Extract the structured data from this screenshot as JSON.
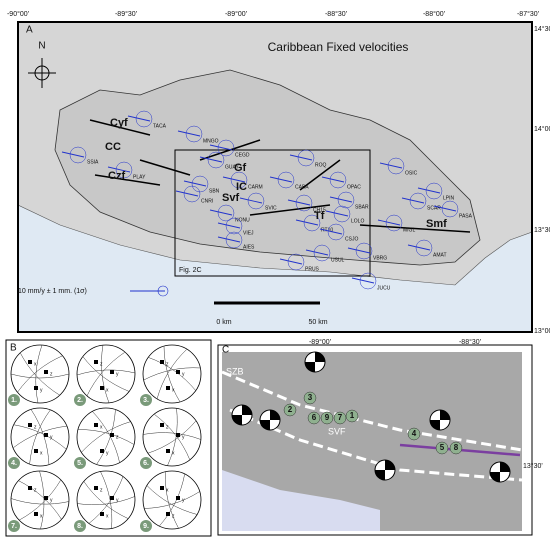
{
  "panel_a": {
    "label": "A",
    "title": "Caribbean Fixed velocities",
    "north": "N",
    "lon_labels": [
      "-90°00'",
      "-89°30'",
      "-89°00'",
      "-88°30'",
      "-88°00'",
      "-87°30'"
    ],
    "lat_labels": [
      "14°30'",
      "14°00'",
      "13°30'",
      "13°00'"
    ],
    "stations": [
      "TACA",
      "MNGO",
      "CEGD",
      "SSIA",
      "PLAY",
      "GUAY",
      "CNRI",
      "SBN",
      "CARM",
      "CABA",
      "NONU",
      "SVIC",
      "CH15",
      "OPAC",
      "SBAR",
      "LOLO",
      "RT10",
      "VIEJ",
      "AIES",
      "CSJO",
      "USUL",
      "PRUS",
      "VBRG",
      "JUCU",
      "OSIC",
      "LPIN",
      "SCAR",
      "PASA",
      "MIGL",
      "AMAT",
      "ROQ"
    ],
    "faults": [
      {
        "name": "Cyf",
        "kind": "fault"
      },
      {
        "name": "CC",
        "kind": "caldera"
      },
      {
        "name": "Czf",
        "kind": "fault"
      },
      {
        "name": "Gf",
        "kind": "fault"
      },
      {
        "name": "IC",
        "kind": "caldera"
      },
      {
        "name": "Svf",
        "kind": "fault"
      },
      {
        "name": "Tf",
        "kind": "fault"
      },
      {
        "name": "Smf",
        "kind": "fault"
      }
    ],
    "inset": "Fig. 2C",
    "legend": "10 mm/y ± 1 mm. (1σ)",
    "scale": [
      "0 km",
      "50 km"
    ]
  },
  "panel_b": {
    "label": "B",
    "nets": [
      {
        "number": "1.",
        "axes": [
          "x",
          "z",
          "y"
        ]
      },
      {
        "number": "2.",
        "axes": [
          "z",
          "y",
          "x"
        ]
      },
      {
        "number": "3.",
        "axes": [
          "z",
          "y",
          "x"
        ]
      },
      {
        "number": "4.",
        "axes": [
          "z",
          "y",
          "x"
        ]
      },
      {
        "number": "5.",
        "axes": [
          "x",
          "z",
          "y"
        ]
      },
      {
        "number": "6.",
        "axes": [
          "z",
          "y",
          "x"
        ]
      },
      {
        "number": "7.",
        "axes": [
          "z",
          "y",
          "x"
        ]
      },
      {
        "number": "8.",
        "axes": [
          "z",
          "y",
          "x"
        ]
      },
      {
        "number": "9.",
        "axes": [
          "x",
          "y",
          "z"
        ]
      }
    ]
  },
  "panel_c": {
    "label": "C",
    "lon_labels": [
      "-89°00'",
      "-88°30'"
    ],
    "lat_labels": [
      "13°30'"
    ],
    "zones": [
      "SZB",
      "SVF"
    ],
    "markers": [
      "3",
      "2",
      "6",
      "9",
      "7",
      "1",
      "4",
      "5",
      "8"
    ]
  }
}
